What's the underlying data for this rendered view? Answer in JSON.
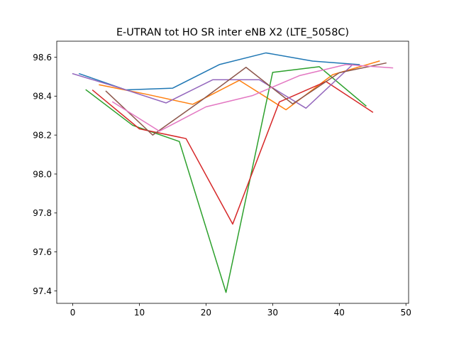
{
  "chart_data": {
    "type": "line",
    "title": "E-UTRAN tot HO SR inter eNB X2 (LTE_5058C)",
    "xlabel": "",
    "ylabel": "",
    "xlim": [
      -2.4,
      50.4
    ],
    "ylim": [
      97.336,
      98.682
    ],
    "xticks": [
      0,
      10,
      20,
      30,
      40,
      50
    ],
    "yticks": [
      97.4,
      97.6,
      97.8,
      98.0,
      98.2,
      98.4,
      98.6
    ],
    "ytick_labels": [
      "97.4",
      "97.6",
      "97.8",
      "98.0",
      "98.2",
      "98.4",
      "98.6"
    ],
    "grid": false,
    "legend": "none",
    "series": [
      {
        "color": "#1f77b4",
        "x": [
          1,
          8,
          15,
          22,
          29,
          36,
          43
        ],
        "y": [
          98.515,
          98.432,
          98.441,
          98.562,
          98.622,
          98.58,
          98.562
        ]
      },
      {
        "color": "#ff7f0e",
        "x": [
          4,
          11,
          18,
          25,
          32,
          39,
          46
        ],
        "y": [
          98.458,
          98.41,
          98.358,
          98.481,
          98.33,
          98.51,
          98.58
        ]
      },
      {
        "color": "#2ca02c",
        "x": [
          2,
          9,
          16,
          23,
          30,
          37,
          44
        ],
        "y": [
          98.432,
          98.25,
          98.167,
          97.392,
          98.522,
          98.551,
          98.35
        ]
      },
      {
        "color": "#d62728",
        "x": [
          3,
          10,
          17,
          24,
          31,
          38,
          45
        ],
        "y": [
          98.43,
          98.232,
          98.182,
          97.743,
          98.37,
          98.475,
          98.318
        ]
      },
      {
        "color": "#9467bd",
        "x": [
          0,
          7,
          14,
          21,
          28,
          35,
          42
        ],
        "y": [
          98.515,
          98.443,
          98.365,
          98.484,
          98.484,
          98.338,
          98.562
        ]
      },
      {
        "color": "#8c564b",
        "x": [
          5,
          12,
          19,
          26,
          33,
          40,
          47
        ],
        "y": [
          98.425,
          98.2,
          98.37,
          98.548,
          98.36,
          98.52,
          98.57
        ]
      },
      {
        "color": "#e377c2",
        "x": [
          6,
          13,
          20,
          27,
          34,
          41,
          48
        ],
        "y": [
          98.37,
          98.22,
          98.345,
          98.403,
          98.505,
          98.562,
          98.545
        ]
      }
    ]
  }
}
